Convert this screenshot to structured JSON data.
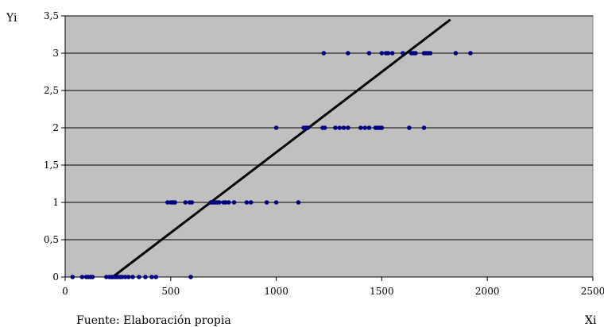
{
  "chart_data": {
    "type": "scatter",
    "title": "",
    "xlabel": "Xi",
    "ylabel": "Yi",
    "source_note": "Fuente: Elaboración propia",
    "xlim": [
      0,
      2500
    ],
    "ylim": [
      0,
      3.5
    ],
    "x_ticks": [
      "0",
      "500",
      "1000",
      "1500",
      "2000",
      "2500"
    ],
    "y_ticks": [
      "0",
      "0,5",
      "1",
      "1,5",
      "2",
      "2,5",
      "3",
      "3,5"
    ],
    "grid": "horizontal",
    "plot_background": "#c0c0c0",
    "point_color": "#000080",
    "line_color": "#000000",
    "series": [
      {
        "type": "scatter",
        "points": [
          [
            35,
            0
          ],
          [
            80,
            0
          ],
          [
            100,
            0
          ],
          [
            110,
            0
          ],
          [
            120,
            0
          ],
          [
            130,
            0
          ],
          [
            195,
            0
          ],
          [
            210,
            0
          ],
          [
            220,
            0
          ],
          [
            225,
            0
          ],
          [
            235,
            0
          ],
          [
            240,
            0
          ],
          [
            250,
            0
          ],
          [
            260,
            0
          ],
          [
            270,
            0
          ],
          [
            285,
            0
          ],
          [
            300,
            0
          ],
          [
            320,
            0
          ],
          [
            350,
            0
          ],
          [
            380,
            0
          ],
          [
            410,
            0
          ],
          [
            430,
            0
          ],
          [
            595,
            0
          ],
          [
            485,
            1
          ],
          [
            500,
            1
          ],
          [
            510,
            1
          ],
          [
            520,
            1
          ],
          [
            570,
            1
          ],
          [
            590,
            1
          ],
          [
            600,
            1
          ],
          [
            690,
            1
          ],
          [
            700,
            1
          ],
          [
            710,
            1
          ],
          [
            720,
            1
          ],
          [
            730,
            1
          ],
          [
            750,
            1
          ],
          [
            760,
            1
          ],
          [
            775,
            1
          ],
          [
            800,
            1
          ],
          [
            860,
            1
          ],
          [
            880,
            1
          ],
          [
            955,
            1
          ],
          [
            1000,
            1
          ],
          [
            1105,
            1
          ],
          [
            1000,
            2
          ],
          [
            1130,
            2
          ],
          [
            1140,
            2
          ],
          [
            1150,
            2
          ],
          [
            1220,
            2
          ],
          [
            1230,
            2
          ],
          [
            1280,
            2
          ],
          [
            1300,
            2
          ],
          [
            1320,
            2
          ],
          [
            1340,
            2
          ],
          [
            1400,
            2
          ],
          [
            1420,
            2
          ],
          [
            1440,
            2
          ],
          [
            1470,
            2
          ],
          [
            1480,
            2
          ],
          [
            1490,
            2
          ],
          [
            1500,
            2
          ],
          [
            1630,
            2
          ],
          [
            1700,
            2
          ],
          [
            1225,
            3
          ],
          [
            1340,
            3
          ],
          [
            1440,
            3
          ],
          [
            1500,
            3
          ],
          [
            1520,
            3
          ],
          [
            1530,
            3
          ],
          [
            1550,
            3
          ],
          [
            1600,
            3
          ],
          [
            1640,
            3
          ],
          [
            1650,
            3
          ],
          [
            1660,
            3
          ],
          [
            1700,
            3
          ],
          [
            1710,
            3
          ],
          [
            1720,
            3
          ],
          [
            1730,
            3
          ],
          [
            1850,
            3
          ],
          [
            1920,
            3
          ]
        ]
      },
      {
        "type": "line",
        "points": [
          [
            225,
            0
          ],
          [
            1825,
            3.45
          ]
        ]
      }
    ]
  }
}
